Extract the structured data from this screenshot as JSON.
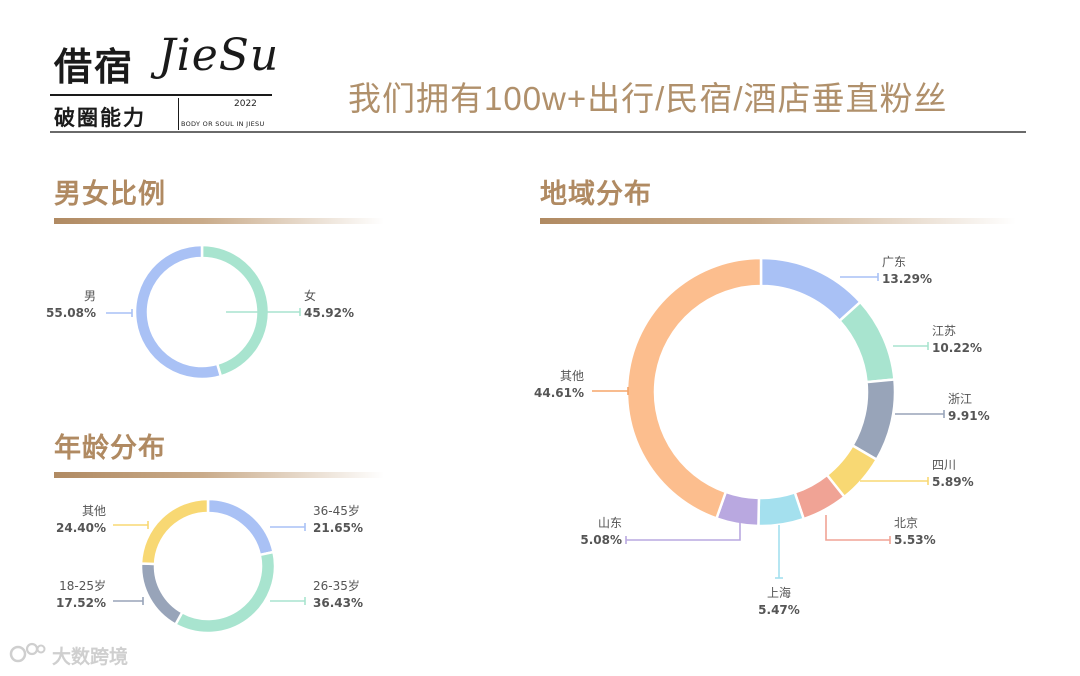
{
  "logo": {
    "cn": "借宿",
    "en": "JieSu",
    "year": "2022",
    "subtitle": "破圈能力",
    "tagline": "BODY OR SOUL IN JIESU"
  },
  "headline": "我们拥有100w+出行/民宿/酒店垂直粉丝",
  "sections": {
    "gender": "男女比例",
    "age": "年龄分布",
    "region": "地域分布"
  },
  "footer": {
    "watermark": "大数跨境",
    "icon": "watermark-logo-icon"
  },
  "colors": {
    "title": "#b08a62",
    "headline": "#b0906b",
    "label": "#555555"
  },
  "chart_data": [
    {
      "type": "pie",
      "id": "gender",
      "slices": [
        {
          "label": "女",
          "value": 45.92,
          "text": "45.92%",
          "color": "#a8e4cf"
        },
        {
          "label": "男",
          "value": 55.08,
          "text": "55.08%",
          "color": "#a9c1f5"
        }
      ]
    },
    {
      "type": "pie",
      "id": "age",
      "slices": [
        {
          "label": "36-45岁",
          "value": 21.65,
          "text": "21.65%",
          "color": "#a9c1f5"
        },
        {
          "label": "26-35岁",
          "value": 36.43,
          "text": "36.43%",
          "color": "#a8e4cf"
        },
        {
          "label": "18-25岁",
          "value": 17.52,
          "text": "17.52%",
          "color": "#98a4b9"
        },
        {
          "label": "其他",
          "value": 24.4,
          "text": "24.40%",
          "color": "#f8d873"
        }
      ]
    },
    {
      "type": "pie",
      "id": "region",
      "slices": [
        {
          "label": "广东",
          "value": 13.29,
          "text": "13.29%",
          "color": "#a9c1f5"
        },
        {
          "label": "江苏",
          "value": 10.22,
          "text": "10.22%",
          "color": "#a8e4cf"
        },
        {
          "label": "浙江",
          "value": 9.91,
          "text": "9.91%",
          "color": "#98a4b9"
        },
        {
          "label": "四川",
          "value": 5.89,
          "text": "5.89%",
          "color": "#f8d873"
        },
        {
          "label": "北京",
          "value": 5.53,
          "text": "5.53%",
          "color": "#f0a395"
        },
        {
          "label": "上海",
          "value": 5.47,
          "text": "5.47%",
          "color": "#a4e0ee"
        },
        {
          "label": "山东",
          "value": 5.08,
          "text": "5.08%",
          "color": "#b9a8e0"
        },
        {
          "label": "其他",
          "value": 44.61,
          "text": "44.61%",
          "color": "#fcbe8e"
        }
      ]
    }
  ]
}
